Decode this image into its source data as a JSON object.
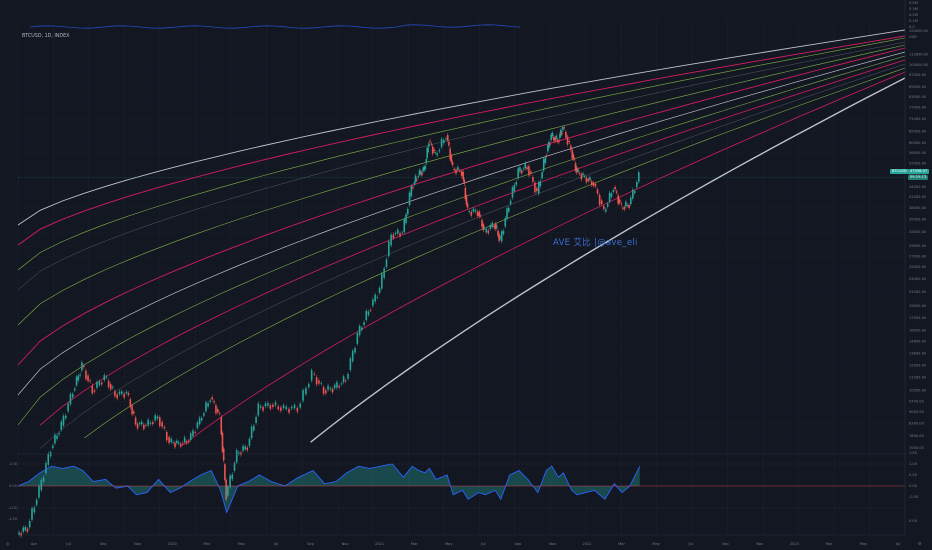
{
  "chart_data": {
    "type": "line",
    "symbol_label": "BTCUSD, 1D, INDEX",
    "watermark": "AVE 艾比 |@ave_eli",
    "price_label": "BTCUSD",
    "last_price": "47098.47",
    "last_price_extra": "09:19:13",
    "price_scale_log": true,
    "price_axis_ticks": [
      "112000.00",
      "104000.00",
      "97000.00",
      "89000.00",
      "83000.00",
      "77000.00",
      "71000.00",
      "65000.00",
      "60000.00",
      "56000.00",
      "52000.00",
      "48000.00",
      "44000.00",
      "41000.00",
      "38000.00",
      "35000.00",
      "32000.00",
      "29000.00",
      "27000.00",
      "25000.00",
      "23000.00",
      "21000.00",
      "19000.00",
      "17500.00",
      "16000.00",
      "14800.00",
      "13600.00",
      "12500.00",
      "11500.00",
      "10500.00",
      "9700.00",
      "9000.00",
      "8300.00",
      "7600.00",
      "7000.00"
    ],
    "osc_axis_ticks": [
      "1.50",
      "1.00",
      "0.50",
      "0.00",
      "-0.50"
    ],
    "osc_left_ticks": [
      "1.00",
      "0.00",
      "-1.00",
      "-1.50"
    ],
    "top_axis_ticks": [
      "0.4M",
      "0.3M",
      "0.2M",
      "0.1M",
      "0.0",
      "124000.00",
      "USD"
    ],
    "x_axis_ticks": [
      "Apr",
      "Jul",
      "Sep",
      "Nov",
      "2020",
      "Mar",
      "May",
      "Jul",
      "Sep",
      "Nov",
      "2021",
      "Mar",
      "May",
      "Jul",
      "Sep",
      "Nov",
      "2022",
      "Mar",
      "May",
      "Jul",
      "Sep",
      "Nov",
      "2023",
      "Mar",
      "May",
      "Jul"
    ],
    "price_series": {
      "name": "BTCUSD",
      "x": [
        "2019-03-01",
        "2019-03-20",
        "2019-04-10",
        "2019-05-01",
        "2019-05-20",
        "2019-06-10",
        "2019-06-26",
        "2019-07-15",
        "2019-08-06",
        "2019-08-25",
        "2019-09-15",
        "2019-10-01",
        "2019-10-20",
        "2019-11-10",
        "2019-12-01",
        "2019-12-18",
        "2020-01-05",
        "2020-01-25",
        "2020-02-13",
        "2020-03-01",
        "2020-03-12",
        "2020-04-01",
        "2020-04-20",
        "2020-05-10",
        "2020-06-01",
        "2020-06-25",
        "2020-07-20",
        "2020-08-15",
        "2020-09-05",
        "2020-09-25",
        "2020-10-15",
        "2020-11-05",
        "2020-11-25",
        "2020-12-15",
        "2021-01-05",
        "2021-01-25",
        "2021-02-10",
        "2021-02-22",
        "2021-03-05",
        "2021-03-13",
        "2021-03-25",
        "2021-04-14",
        "2021-04-25",
        "2021-05-12",
        "2021-05-22",
        "2021-06-10",
        "2021-06-22",
        "2021-07-10",
        "2021-07-20",
        "2021-08-05",
        "2021-08-22",
        "2021-09-07",
        "2021-09-25",
        "2021-10-10",
        "2021-10-20",
        "2021-11-01",
        "2021-11-10",
        "2021-11-25",
        "2021-12-05",
        "2021-12-20",
        "2022-01-05",
        "2022-01-24",
        "2022-02-10",
        "2022-02-24",
        "2022-03-10",
        "2022-03-28"
      ],
      "values": [
        3800,
        4000,
        5200,
        7000,
        8200,
        10500,
        12500,
        10500,
        11500,
        10200,
        10300,
        8300,
        8200,
        8700,
        7300,
        7200,
        7400,
        8500,
        10000,
        8700,
        5000,
        6700,
        7100,
        9300,
        9500,
        9200,
        9300,
        11800,
        10500,
        10700,
        11400,
        15500,
        18500,
        21500,
        31500,
        32000,
        44000,
        48000,
        50000,
        61000,
        55000,
        63500,
        50000,
        49000,
        37000,
        37000,
        32000,
        34000,
        30000,
        39000,
        49000,
        51000,
        42000,
        55000,
        63000,
        61000,
        67000,
        57000,
        49000,
        47000,
        45000,
        37000,
        44000,
        38000,
        39000,
        47500
      ],
      "color": "#26a69a"
    },
    "oscillator": {
      "name": "",
      "values": [
        0.0,
        0.2,
        0.6,
        0.9,
        0.8,
        0.9,
        0.7,
        0.2,
        0.3,
        -0.1,
        0.0,
        -0.4,
        -0.3,
        0.3,
        -0.3,
        -0.1,
        0.2,
        0.5,
        0.7,
        -0.2,
        -1.2,
        0.0,
        0.2,
        0.5,
        0.2,
        0.0,
        0.4,
        0.7,
        0.1,
        0.2,
        0.6,
        0.9,
        0.8,
        0.9,
        1.0,
        0.4,
        0.9,
        0.7,
        0.6,
        0.8,
        0.3,
        0.5,
        -0.4,
        -0.2,
        -0.6,
        -0.3,
        -0.4,
        -0.2,
        -0.6,
        0.5,
        0.7,
        0.3,
        -0.3,
        0.7,
        0.9,
        0.4,
        0.6,
        -0.2,
        -0.4,
        -0.3,
        -0.2,
        -0.6,
        0.1,
        -0.3,
        0.0,
        0.9
      ],
      "colors": {
        "line": "#2962ff",
        "positive_fill": "#26a69a",
        "negative_fill": "#ef5350"
      }
    },
    "volume_band": {
      "name": ""
    },
    "colors": {
      "background": "#131722",
      "up": "#26a69a",
      "down": "#ef5350",
      "fan_white": "#d1d4dc",
      "fan_red": "#e91e63",
      "fan_green": "#8bc34a",
      "fan_grey": "#5d606b"
    },
    "grid": true
  }
}
